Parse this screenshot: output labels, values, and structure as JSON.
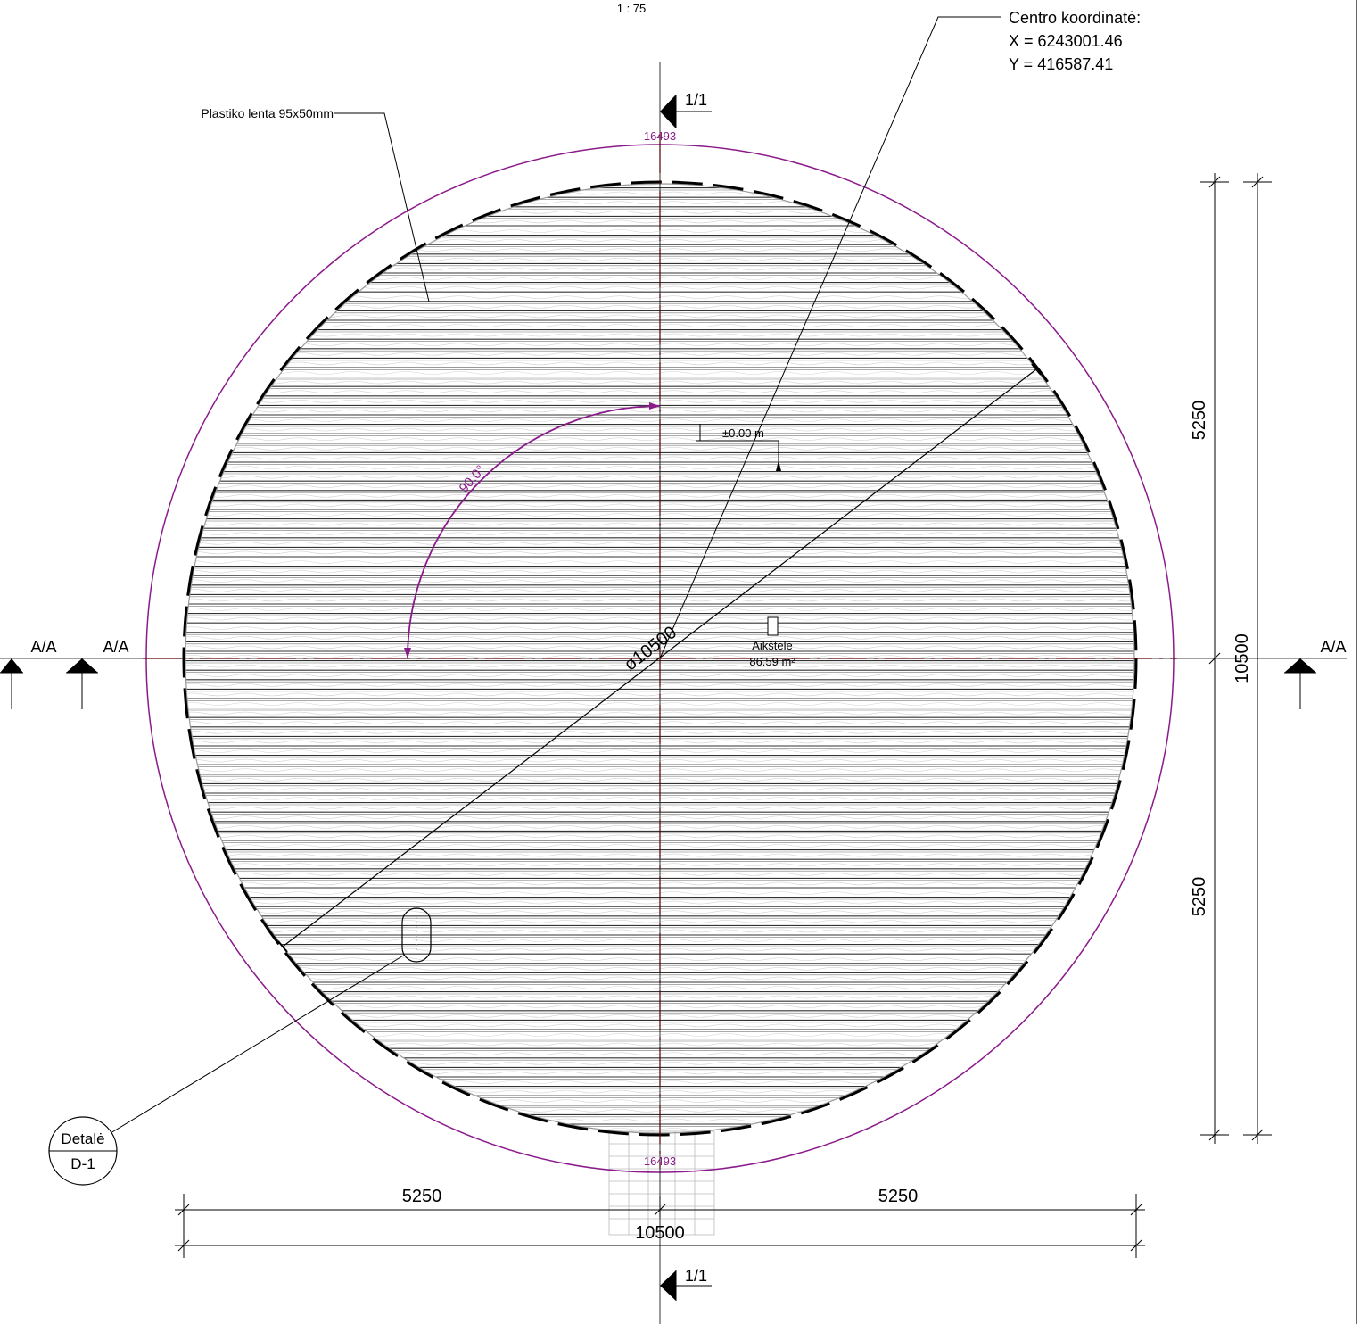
{
  "drawing": {
    "scale": "1 : 75",
    "frame_color": "#000000",
    "accent_color": "#8b1a8b",
    "centerline_color": "#e00000"
  },
  "center_note": {
    "title": "Centro koordinatė:",
    "x_line": "X = 6243001.46",
    "y_line": "Y = 416587.41"
  },
  "board_note": "Plastiko lenta 95x50mm",
  "section_markers": {
    "top": "1/1",
    "bottom": "1/1",
    "left_outer": "A/A",
    "left_inner": "A/A",
    "right": "A/A"
  },
  "arc_length": {
    "top": "16493",
    "bottom": "16493"
  },
  "angle_label": "90.0°",
  "diameter_label": "ø10500",
  "level_label": "±0.00 m",
  "room": {
    "name": "Aikštelė",
    "area": "86.59 m²"
  },
  "detail_ref": {
    "label": "Detalė",
    "code": "D-1"
  },
  "dimensions": {
    "bottom_left": "5250",
    "bottom_right": "5250",
    "bottom_total": "10500",
    "right_top": "5250",
    "right_bottom": "5250",
    "right_total": "10500"
  }
}
